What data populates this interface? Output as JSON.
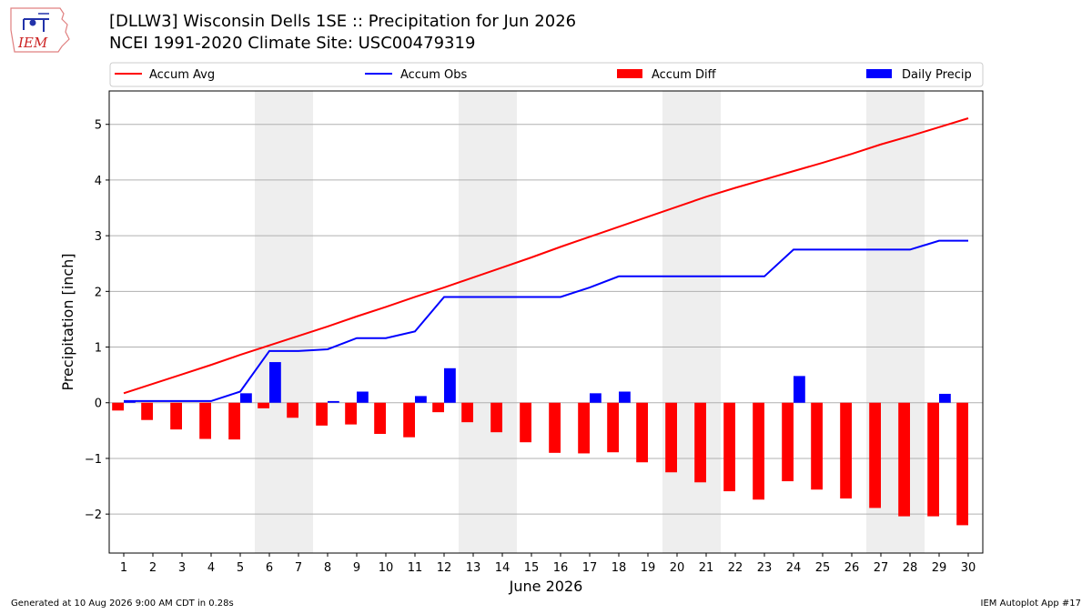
{
  "header": {
    "title_line1": "[DLLW3] Wisconsin Dells 1SE :: Precipitation for Jun 2026",
    "title_line2": "NCEI 1991-2020 Climate Site: USC00479319",
    "logo_text": "IEM"
  },
  "footer": {
    "generated": "Generated at 10 Aug 2026 9:00 AM CDT in 0.28s",
    "app": "IEM Autoplot App #17"
  },
  "colors": {
    "avg": "#ff0000",
    "obs": "#0000ff",
    "diff": "#ff0000",
    "daily": "#0000ff",
    "weekend_shade": "#eeeeee",
    "grid": "#b0b0b0"
  },
  "chart_data": {
    "type": "bar",
    "xlabel": "June 2026",
    "ylabel": "Precipitation [inch]",
    "ylim": [
      -2.7,
      5.6
    ],
    "yticks": [
      -2,
      -1,
      0,
      1,
      2,
      3,
      4,
      5
    ],
    "ytick_labels": [
      "−2",
      "−1",
      "0",
      "1",
      "2",
      "3",
      "4",
      "5"
    ],
    "x": [
      1,
      2,
      3,
      4,
      5,
      6,
      7,
      8,
      9,
      10,
      11,
      12,
      13,
      14,
      15,
      16,
      17,
      18,
      19,
      20,
      21,
      22,
      23,
      24,
      25,
      26,
      27,
      28,
      29,
      30
    ],
    "grid": "horizontal",
    "shaded_days": [
      [
        6,
        7
      ],
      [
        13,
        14
      ],
      [
        20,
        21
      ],
      [
        27,
        28
      ]
    ],
    "legend": [
      "Accum Avg",
      "Accum Obs",
      "Accum Diff",
      "Daily Precip"
    ],
    "legend_placement": "top",
    "series": [
      {
        "name": "Accum Avg",
        "kind": "line",
        "values": [
          0.17,
          0.34,
          0.51,
          0.68,
          0.86,
          1.03,
          1.2,
          1.37,
          1.55,
          1.72,
          1.9,
          2.07,
          2.25,
          2.43,
          2.61,
          2.8,
          2.98,
          3.16,
          3.34,
          3.52,
          3.7,
          3.86,
          4.01,
          4.16,
          4.31,
          4.47,
          4.64,
          4.79,
          4.95,
          5.11
        ]
      },
      {
        "name": "Accum Obs",
        "kind": "line",
        "values": [
          0.03,
          0.03,
          0.03,
          0.03,
          0.2,
          0.93,
          0.93,
          0.96,
          1.16,
          1.16,
          1.28,
          1.9,
          1.9,
          1.9,
          1.9,
          1.9,
          2.07,
          2.27,
          2.27,
          2.27,
          2.27,
          2.27,
          2.27,
          2.75,
          2.75,
          2.75,
          2.75,
          2.75,
          2.91,
          2.91
        ]
      },
      {
        "name": "Accum Diff",
        "kind": "bar",
        "values": [
          -0.14,
          -0.31,
          -0.48,
          -0.65,
          -0.66,
          -0.1,
          -0.27,
          -0.41,
          -0.39,
          -0.56,
          -0.62,
          -0.17,
          -0.35,
          -0.53,
          -0.71,
          -0.9,
          -0.91,
          -0.89,
          -1.07,
          -1.25,
          -1.43,
          -1.59,
          -1.74,
          -1.41,
          -1.56,
          -1.72,
          -1.89,
          -2.04,
          -2.04,
          -2.2
        ]
      },
      {
        "name": "Daily Precip",
        "kind": "bar",
        "values": [
          0.03,
          0,
          0,
          0,
          0.17,
          0.73,
          0,
          0.03,
          0.2,
          0,
          0.12,
          0.62,
          0,
          0,
          0,
          0,
          0.17,
          0.2,
          0,
          0,
          0,
          0,
          0,
          0.48,
          0,
          0,
          0,
          0,
          0.16,
          0
        ]
      }
    ]
  }
}
